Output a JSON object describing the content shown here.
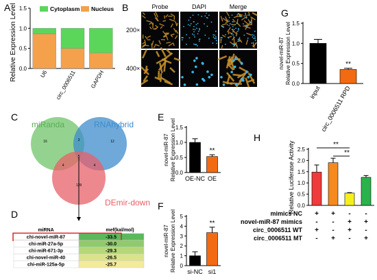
{
  "panel_letters": {
    "A": "A",
    "B": "B",
    "C": "C",
    "D": "D",
    "E": "E",
    "F": "F",
    "G": "G",
    "H": "H"
  },
  "chart_data": [
    {
      "panel": "A",
      "type": "bar",
      "stacked": true,
      "categories": [
        "U6",
        "circ_0006511",
        "GAPDH"
      ],
      "series": [
        {
          "name": "Nucleus",
          "values": [
            0.86,
            0.5,
            0.39
          ],
          "color": "#f5a04a"
        },
        {
          "name": "Cytoplasm",
          "values": [
            0.14,
            0.5,
            0.61
          ],
          "color": "#5bd65b"
        }
      ],
      "ylabel": "Relative Expression Level",
      "ylim": [
        0,
        1.5
      ],
      "yticks": [
        "0.0",
        "0.5",
        "1.0",
        "1.5"
      ],
      "legend": "top-right"
    },
    {
      "panel": "E",
      "type": "bar",
      "categories": [
        "OE-NC",
        "OE"
      ],
      "values": [
        1.0,
        0.53
      ],
      "errors": [
        0.12,
        0.06
      ],
      "colors": [
        "#000000",
        "#f26a12"
      ],
      "significance": [
        "",
        "**"
      ],
      "ylabel": "novel-miR-87\nRelative Expression Level",
      "ylim": [
        0,
        1.5
      ],
      "yticks": [
        "0.0",
        "0.5",
        "1.0",
        "1.5"
      ]
    },
    {
      "panel": "F",
      "type": "bar",
      "categories": [
        "si-NC",
        "si1"
      ],
      "values": [
        1.0,
        3.35
      ],
      "errors": [
        0.4,
        0.55
      ],
      "colors": [
        "#000000",
        "#f26a12"
      ],
      "significance": [
        "",
        "**"
      ],
      "ylabel": "novel-miR-87\nRelative Expression Level",
      "ylim": [
        0,
        5
      ],
      "yticks": [
        "0",
        "1",
        "2",
        "3",
        "4",
        "5"
      ]
    },
    {
      "panel": "G",
      "type": "bar",
      "categories": [
        "input",
        "circ_0006511 RPD"
      ],
      "values": [
        1.0,
        0.35
      ],
      "errors": [
        0.1,
        0.03
      ],
      "colors": [
        "#000000",
        "#f26a12"
      ],
      "significance": [
        "",
        "**"
      ],
      "ylabel": "novel-miR-87\nRelative Expression Level",
      "ylim": [
        0,
        1.5
      ],
      "yticks": [
        "0.0",
        "0.5",
        "1.0",
        "1.5"
      ]
    },
    {
      "panel": "H",
      "type": "bar",
      "categories": [
        "1",
        "2",
        "3",
        "4"
      ],
      "values": [
        1.48,
        1.9,
        0.55,
        1.25
      ],
      "errors": [
        0.32,
        0.2,
        0.02,
        0.08
      ],
      "colors": [
        "#ef3b3b",
        "#f68a1e",
        "#f5f01c",
        "#2ab34a"
      ],
      "ylabel": "Relative Luciferase Activity",
      "ylim": [
        0,
        2.5
      ],
      "yticks": [
        "0.0",
        "0.5",
        "1.0",
        "1.5",
        "2.0",
        "2.5"
      ],
      "significance_brackets": [
        {
          "from": 0,
          "to": 2,
          "label": "**"
        },
        {
          "from": 1,
          "to": 2,
          "label": "**"
        }
      ],
      "conditions": [
        {
          "label": "mimics NC",
          "signs": [
            "+",
            "+",
            "-",
            "-"
          ]
        },
        {
          "label": "novel-miR-87 mimics",
          "signs": [
            "-",
            "-",
            "+",
            "+"
          ]
        },
        {
          "label": "circ_0006511 WT",
          "signs": [
            "+",
            "-",
            "+",
            "-"
          ]
        },
        {
          "label": "circ_0006511 MT",
          "signs": [
            "-",
            "+",
            "-",
            "+"
          ]
        }
      ]
    }
  ],
  "microscopy": {
    "columns": [
      "Probe",
      "DAPI",
      "Merge"
    ],
    "rows": [
      "200×",
      "400×"
    ]
  },
  "venn": {
    "sets": [
      {
        "name": "miRanda",
        "color": "#6fc46a"
      },
      {
        "name": "RNAhybrid",
        "color": "#3d8ccc"
      },
      {
        "name": "DEmir-down",
        "color": "#e8606a"
      }
    ],
    "counts": {
      "a_only": "16",
      "ab": "3",
      "b_only": "12",
      "ac": "4",
      "abc": "5",
      "bc": "4",
      "c_only": "128"
    }
  },
  "table": {
    "headers": [
      "miRNA",
      "mef(kal/mol)"
    ],
    "rows": [
      {
        "name": "chi-novel-miR-87",
        "value": "-33.5",
        "color": "#5cb85c",
        "highlight": true
      },
      {
        "name": "chi-miR-27a-5p",
        "value": "-30.0",
        "color": "#8fcb6a",
        "highlight": false
      },
      {
        "name": "chi-miR-671-3p",
        "value": "-29.3",
        "color": "#b5d77a",
        "highlight": false
      },
      {
        "name": "chi-novel-miR-40",
        "value": "-26.5",
        "color": "#dbe38a",
        "highlight": false
      },
      {
        "name": "chi-miR-125a-5p",
        "value": "-25.7",
        "color": "#f4ea9a",
        "highlight": false
      }
    ]
  }
}
